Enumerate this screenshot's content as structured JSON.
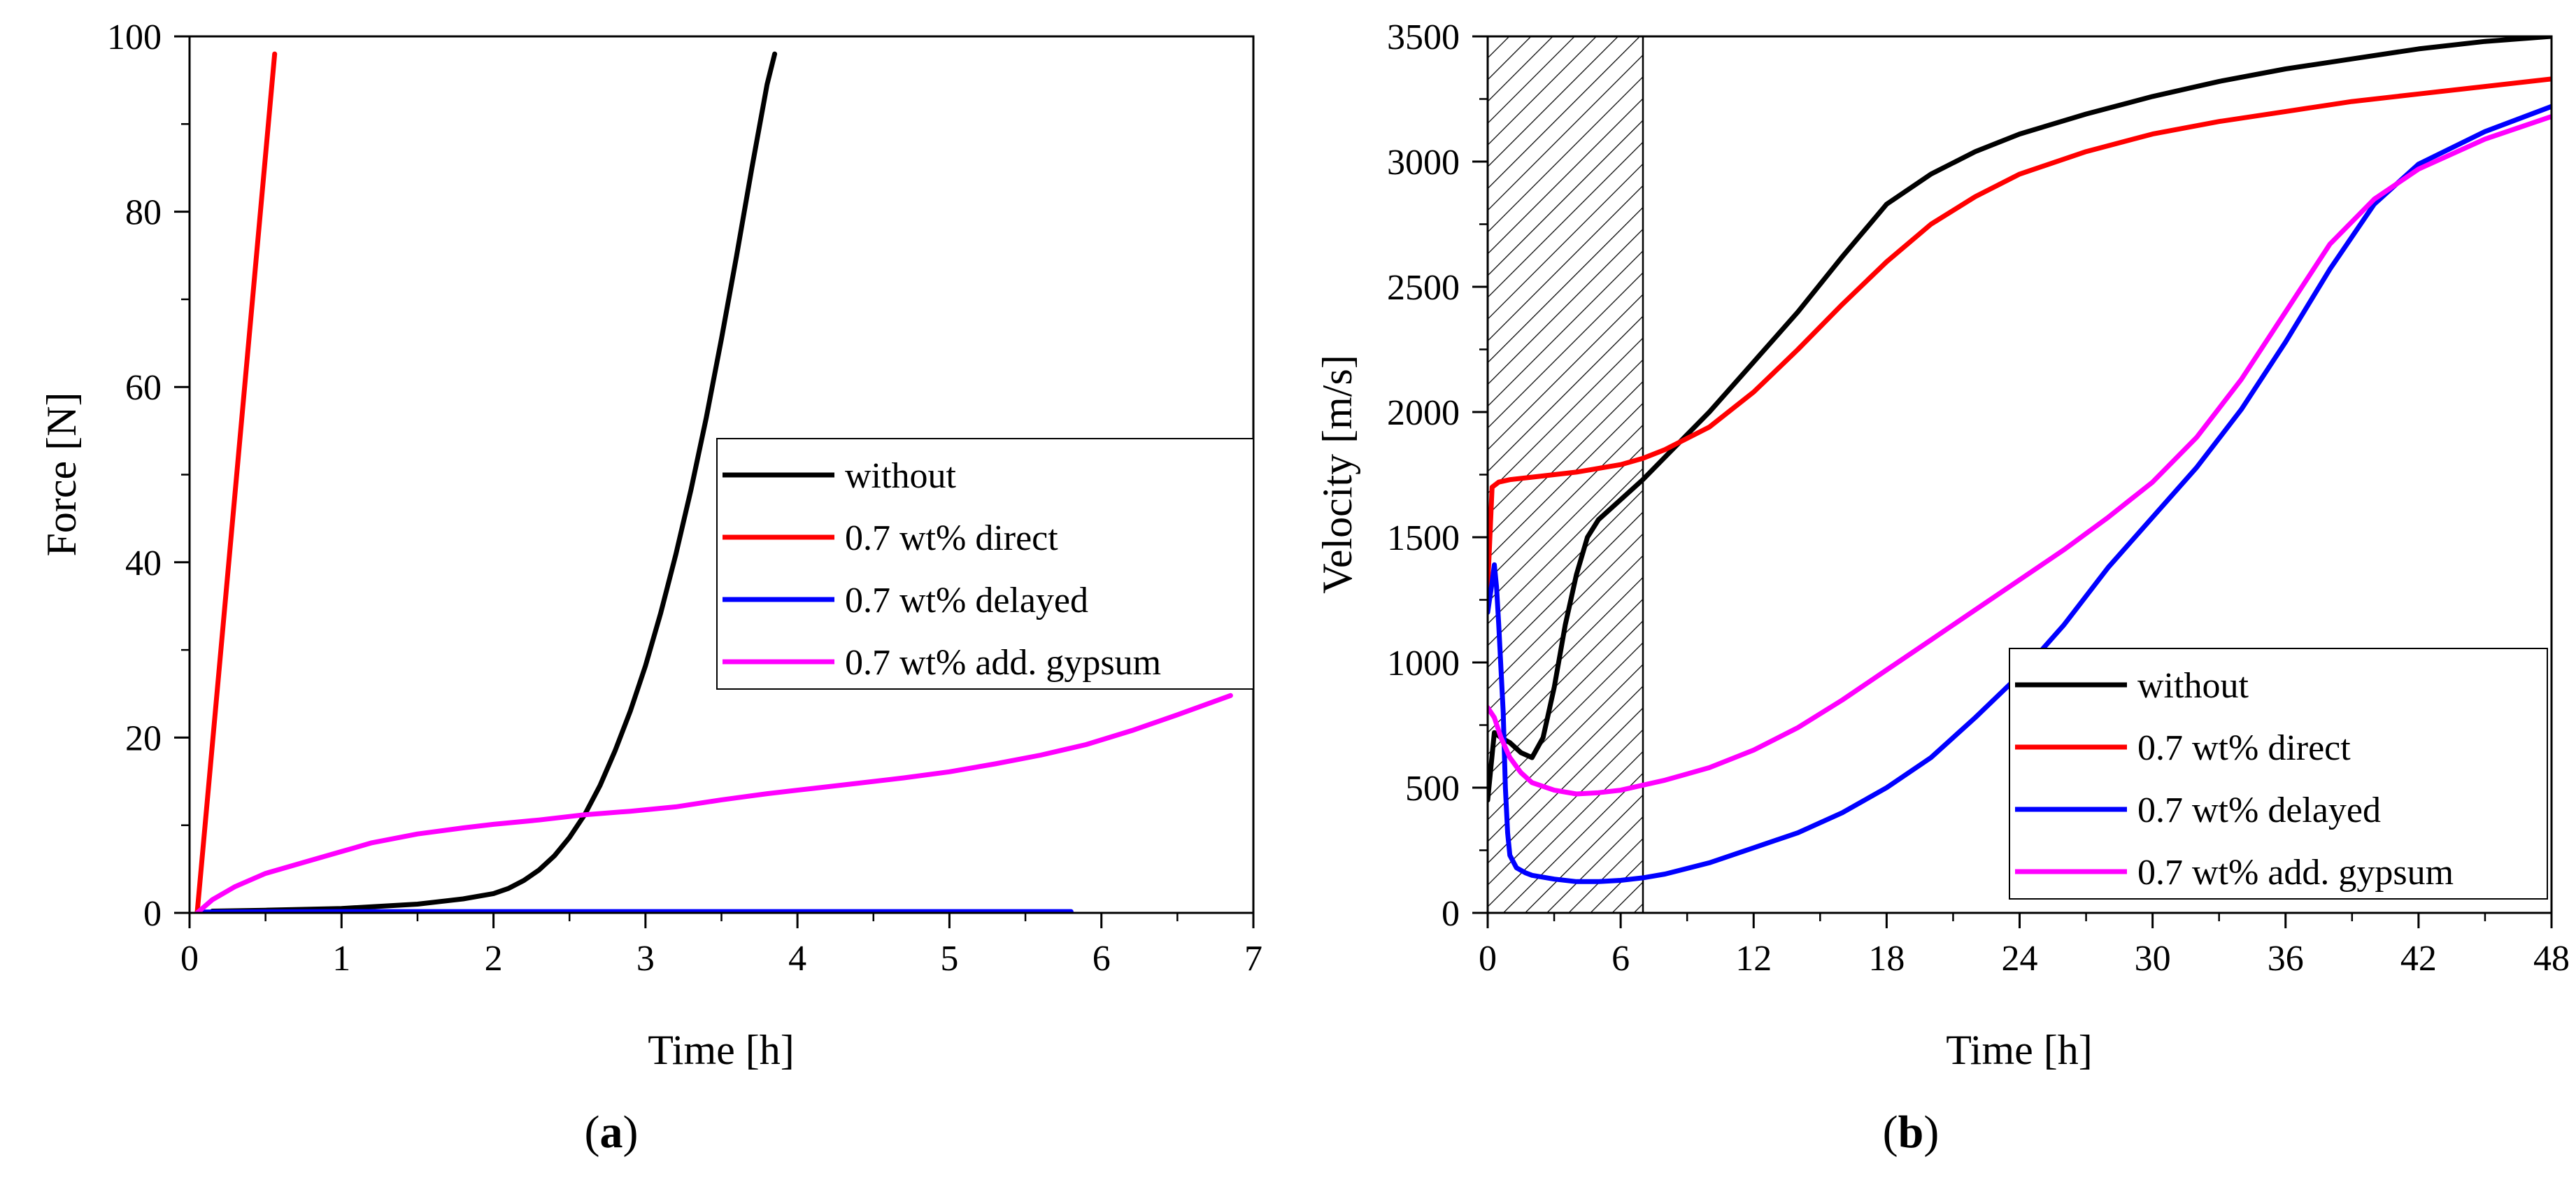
{
  "chart_data": [
    {
      "type": "line",
      "panel": "(a)",
      "panel_letter": "a",
      "xlabel": "Time [h]",
      "ylabel": "Force [N]",
      "xlim": [
        0,
        7
      ],
      "ylim": [
        0,
        100
      ],
      "xticks": [
        0,
        1,
        2,
        3,
        4,
        5,
        6,
        7
      ],
      "yticks": [
        0,
        20,
        40,
        60,
        80,
        100
      ],
      "legend_position": "center-right",
      "series": [
        {
          "name": "without",
          "color": "#000000",
          "x": [
            0.15,
            0.5,
            1.0,
            1.5,
            1.8,
            2.0,
            2.1,
            2.2,
            2.3,
            2.4,
            2.5,
            2.6,
            2.7,
            2.8,
            2.9,
            3.0,
            3.1,
            3.2,
            3.3,
            3.4,
            3.5,
            3.6,
            3.7,
            3.8,
            3.85
          ],
          "y": [
            0.2,
            0.3,
            0.5,
            1.0,
            1.6,
            2.2,
            2.8,
            3.7,
            4.9,
            6.5,
            8.6,
            11.2,
            14.5,
            18.5,
            23.0,
            28.2,
            34.2,
            40.9,
            48.3,
            56.5,
            65.5,
            75.0,
            85.0,
            94.5,
            98.0
          ]
        },
        {
          "name": "0.7 wt% direct",
          "color": "#ff0000",
          "x": [
            0.05,
            0.56
          ],
          "y": [
            0.0,
            98.0
          ]
        },
        {
          "name": "0.7 wt% delayed",
          "color": "#0000ff",
          "x": [
            0.1,
            1.0,
            2.0,
            3.0,
            4.0,
            5.0,
            5.8
          ],
          "y": [
            0.1,
            0.15,
            0.15,
            0.15,
            0.15,
            0.15,
            0.15
          ]
        },
        {
          "name": "0.7 wt% add. gypsum",
          "color": "#ff00ff",
          "x": [
            0.05,
            0.15,
            0.3,
            0.5,
            0.8,
            1.0,
            1.2,
            1.5,
            1.8,
            2.0,
            2.3,
            2.6,
            2.9,
            3.2,
            3.5,
            3.8,
            4.1,
            4.4,
            4.7,
            5.0,
            5.3,
            5.6,
            5.9,
            6.2,
            6.5,
            6.85
          ],
          "y": [
            0.0,
            1.5,
            3.0,
            4.5,
            6.0,
            7.0,
            8.0,
            9.0,
            9.7,
            10.1,
            10.6,
            11.2,
            11.6,
            12.1,
            12.9,
            13.6,
            14.2,
            14.8,
            15.4,
            16.1,
            17.0,
            18.0,
            19.2,
            20.8,
            22.6,
            24.8
          ]
        }
      ]
    },
    {
      "type": "line",
      "panel": "(b)",
      "panel_letter": "b",
      "xlabel": "Time [h]",
      "ylabel": "Velocity [m/s]",
      "xlim": [
        0,
        48
      ],
      "ylim": [
        0,
        3500
      ],
      "xticks": [
        0,
        6,
        12,
        18,
        24,
        30,
        36,
        42,
        48
      ],
      "yticks": [
        0,
        500,
        1000,
        1500,
        2000,
        2500,
        3000,
        3500
      ],
      "legend_position": "bottom-right",
      "shaded_region": [
        0,
        7
      ],
      "series": [
        {
          "name": "without",
          "color": "#000000",
          "x": [
            0,
            0.3,
            0.6,
            1.0,
            1.5,
            2.0,
            2.5,
            3.0,
            3.5,
            4.0,
            4.5,
            5.0,
            6.0,
            7.0,
            8.0,
            10.0,
            12.0,
            14.0,
            16.0,
            18.0,
            20.0,
            22.0,
            24.0,
            27.0,
            30.0,
            33.0,
            36.0,
            39.0,
            42.0,
            45.0,
            48.0
          ],
          "y": [
            450,
            720,
            700,
            680,
            640,
            620,
            700,
            900,
            1150,
            1350,
            1500,
            1570,
            1650,
            1730,
            1820,
            2000,
            2200,
            2400,
            2620,
            2830,
            2950,
            3040,
            3110,
            3190,
            3260,
            3320,
            3370,
            3410,
            3450,
            3480,
            3500
          ]
        },
        {
          "name": "0.7 wt% direct",
          "color": "#ff0000",
          "x": [
            0,
            0.2,
            0.5,
            1.0,
            2.0,
            4.0,
            6.0,
            7.0,
            8.0,
            10.0,
            12.0,
            14.0,
            16.0,
            18.0,
            20.0,
            22.0,
            24.0,
            27.0,
            30.0,
            33.0,
            36.0,
            39.0,
            42.0,
            45.0,
            48.0
          ],
          "y": [
            1300,
            1700,
            1720,
            1730,
            1740,
            1760,
            1790,
            1815,
            1850,
            1940,
            2080,
            2250,
            2430,
            2600,
            2750,
            2860,
            2950,
            3040,
            3110,
            3160,
            3200,
            3240,
            3270,
            3300,
            3330
          ]
        },
        {
          "name": "0.7 wt% delayed",
          "color": "#0000ff",
          "x": [
            0,
            0.2,
            0.3,
            0.4,
            0.5,
            0.7,
            0.8,
            0.9,
            1.0,
            1.3,
            1.7,
            2.0,
            3.0,
            4.0,
            5.0,
            6.0,
            7.0,
            8.0,
            10.0,
            12.0,
            14.0,
            16.0,
            18.0,
            20.0,
            22.0,
            24.0,
            26.0,
            28.0,
            30.0,
            32.0,
            34.0,
            36.0,
            38.0,
            40.0,
            42.0,
            45.0,
            48.0
          ],
          "y": [
            1200,
            1320,
            1390,
            1300,
            1150,
            800,
            500,
            320,
            230,
            180,
            160,
            150,
            135,
            125,
            125,
            130,
            140,
            155,
            200,
            260,
            320,
            400,
            500,
            620,
            780,
            950,
            1150,
            1380,
            1580,
            1780,
            2010,
            2280,
            2570,
            2830,
            2990,
            3120,
            3220
          ]
        },
        {
          "name": "0.7 wt% add. gypsum",
          "color": "#ff00ff",
          "x": [
            0,
            0.3,
            0.6,
            1.0,
            1.5,
            2.0,
            3.0,
            4.0,
            5.0,
            6.0,
            7.0,
            8.0,
            10.0,
            12.0,
            14.0,
            16.0,
            18.0,
            20.0,
            22.0,
            24.0,
            26.0,
            28.0,
            30.0,
            32.0,
            34.0,
            36.0,
            38.0,
            40.0,
            42.0,
            45.0,
            48.0
          ],
          "y": [
            820,
            780,
            700,
            620,
            560,
            520,
            490,
            475,
            480,
            490,
            510,
            530,
            580,
            650,
            740,
            850,
            970,
            1090,
            1210,
            1330,
            1450,
            1580,
            1720,
            1900,
            2130,
            2400,
            2670,
            2850,
            2970,
            3090,
            3180
          ]
        }
      ]
    }
  ]
}
